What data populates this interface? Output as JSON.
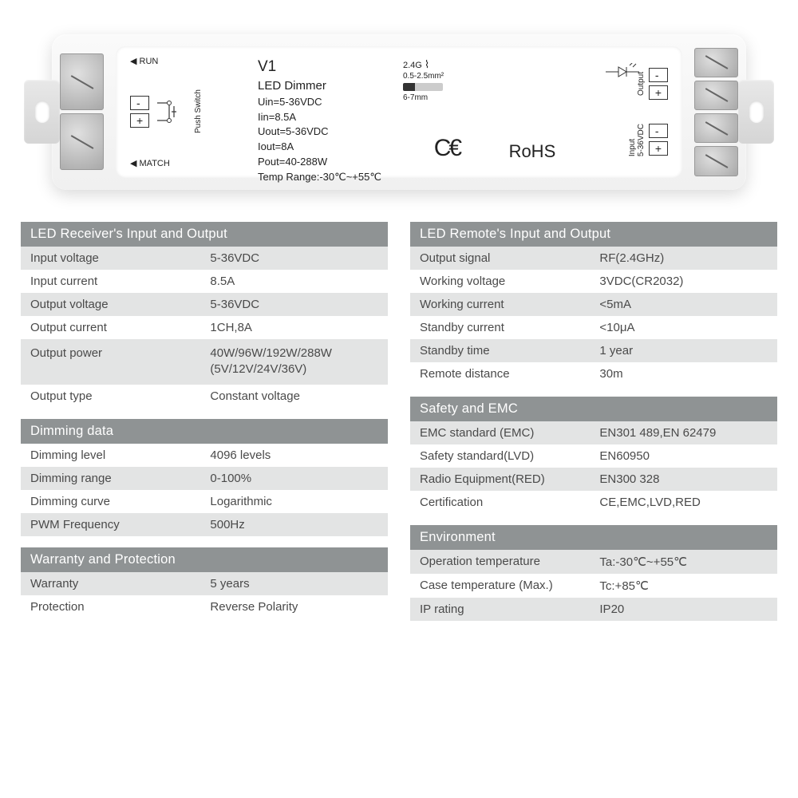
{
  "device": {
    "model": "V1",
    "name": "LED Dimmer",
    "run_label": "RUN",
    "match_label": "MATCH",
    "push_switch": "Push Switch",
    "specs_lines": {
      "uin": "Uin=5-36VDC",
      "iin": "Iin=8.5A",
      "uout": "Uout=5-36VDC",
      "iout": "Iout=8A",
      "pout": "Pout=40-288W",
      "temp": "Temp Range:-30℃~+55℃"
    },
    "wireless": "2.4G",
    "wire_gauge": "0.5-2.5mm²",
    "strip_len": "6-7mm",
    "cert_ce": "CE",
    "cert_rohs": "RoHS",
    "output_label": "Output",
    "input_label": "Input",
    "input_voltage": "5-36VDC"
  },
  "colors": {
    "header_bg": "#8f9394",
    "alt_row": "#e3e4e4",
    "text": "#4a4a4a"
  },
  "left_sections": [
    {
      "title": "LED Receiver's Input and Output",
      "rows": [
        {
          "label": "Input voltage",
          "value": "5-36VDC",
          "alt": true
        },
        {
          "label": "Input current",
          "value": "8.5A",
          "alt": false
        },
        {
          "label": "Output voltage",
          "value": "5-36VDC",
          "alt": true
        },
        {
          "label": "Output current",
          "value": "1CH,8A",
          "alt": false
        },
        {
          "label": "Output power",
          "value": "40W/96W/192W/288W (5V/12V/24V/36V)",
          "alt": true,
          "tall": true
        },
        {
          "label": "Output type",
          "value": "Constant voltage",
          "alt": false
        }
      ]
    },
    {
      "title": "Dimming data",
      "rows": [
        {
          "label": "Dimming level",
          "value": "4096 levels",
          "alt": false
        },
        {
          "label": "Dimming range",
          "value": "0-100%",
          "alt": true
        },
        {
          "label": "Dimming curve",
          "value": "Logarithmic",
          "alt": false
        },
        {
          "label": "PWM Frequency",
          "value": "500Hz",
          "alt": true
        }
      ]
    },
    {
      "title": "Warranty and Protection",
      "rows": [
        {
          "label": "Warranty",
          "value": "5 years",
          "alt": true
        },
        {
          "label": "Protection",
          "value": "Reverse Polarity",
          "alt": false
        }
      ]
    }
  ],
  "right_sections": [
    {
      "title": "LED Remote's Input and Output",
      "rows": [
        {
          "label": "Output signal",
          "value": "RF(2.4GHz)",
          "alt": true
        },
        {
          "label": "Working voltage",
          "value": "3VDC(CR2032)",
          "alt": false
        },
        {
          "label": "Working current",
          "value": "<5mA",
          "alt": true
        },
        {
          "label": "Standby current",
          "value": "<10μA",
          "alt": false
        },
        {
          "label": "Standby time",
          "value": "1 year",
          "alt": true
        },
        {
          "label": "Remote distance",
          "value": "30m",
          "alt": false
        }
      ]
    },
    {
      "title": "Safety and EMC",
      "rows": [
        {
          "label": "EMC standard (EMC)",
          "value": "EN301 489,EN 62479",
          "alt": true
        },
        {
          "label": "Safety standard(LVD)",
          "value": "EN60950",
          "alt": false
        },
        {
          "label": "Radio Equipment(RED)",
          "value": "EN300 328",
          "alt": true
        },
        {
          "label": "Certification",
          "value": "CE,EMC,LVD,RED",
          "alt": false
        }
      ]
    },
    {
      "title": "Environment",
      "rows": [
        {
          "label": "Operation temperature",
          "value": "Ta:-30℃~+55℃",
          "alt": true
        },
        {
          "label": "Case temperature (Max.)",
          "value": "Tc:+85℃",
          "alt": false
        },
        {
          "label": "IP rating",
          "value": "IP20",
          "alt": true
        }
      ]
    }
  ]
}
